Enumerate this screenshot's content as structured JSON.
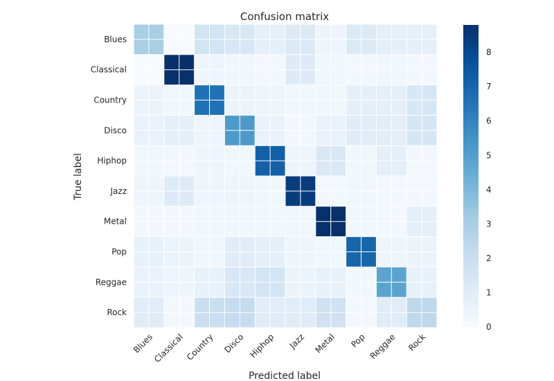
{
  "chart_data": {
    "type": "heatmap",
    "title": "Confusion matrix",
    "xlabel": "Predicted label",
    "ylabel": "True label",
    "x_categories": [
      "Blues",
      "Classical",
      "Country",
      "Disco",
      "Hiphop",
      "Jazz",
      "Metal",
      "Pop",
      "Reggae",
      "Rock"
    ],
    "y_categories": [
      "Blues",
      "Classical",
      "Country",
      "Disco",
      "Hiphop",
      "Jazz",
      "Metal",
      "Pop",
      "Reggae",
      "Rock"
    ],
    "values": [
      [
        3,
        0,
        1.6,
        1.4,
        0.8,
        1.2,
        0.4,
        1.2,
        0.8,
        0.8
      ],
      [
        0,
        8.8,
        0.4,
        0.3,
        0.2,
        1.1,
        0.3,
        0.2,
        0.3,
        0.2
      ],
      [
        0.5,
        0.3,
        6.6,
        0.5,
        0.4,
        0.3,
        0.3,
        0.8,
        0.8,
        1.4
      ],
      [
        0.6,
        0.8,
        0.4,
        5.2,
        0.6,
        0.2,
        0.6,
        1.0,
        0.9,
        1.5
      ],
      [
        0.3,
        0.2,
        0.4,
        0.3,
        7.2,
        0.4,
        1.3,
        0.3,
        0.8,
        0.2
      ],
      [
        0.4,
        1.1,
        0.4,
        0.4,
        0.3,
        8.4,
        0.2,
        0.3,
        0.2,
        0.2
      ],
      [
        0.2,
        0.2,
        0.3,
        0.3,
        0.3,
        0.3,
        8.8,
        0.3,
        0.2,
        0.8
      ],
      [
        0.7,
        0.5,
        0.3,
        1.0,
        0.8,
        0.4,
        0.3,
        7.0,
        0.4,
        0.5
      ],
      [
        0.6,
        0.4,
        0.7,
        1.4,
        1.6,
        0.5,
        0.7,
        0.3,
        4.8,
        0.7
      ],
      [
        1.0,
        0.2,
        2.0,
        2.2,
        1.0,
        1.0,
        1.8,
        0.2,
        1.0,
        2.4
      ]
    ],
    "vmin": 0,
    "vmax": 8.8,
    "colorbar_ticks": [
      "0",
      "1",
      "2",
      "3",
      "4",
      "5",
      "6",
      "7",
      "8"
    ],
    "colormap": "Blues",
    "colormap_stops": [
      "#f7fbff",
      "#deebf7",
      "#c6dbef",
      "#9ecae1",
      "#6baed6",
      "#4292c6",
      "#2171b5",
      "#08519c",
      "#08306b"
    ],
    "grid": true,
    "grid_color": "#ffffff"
  }
}
